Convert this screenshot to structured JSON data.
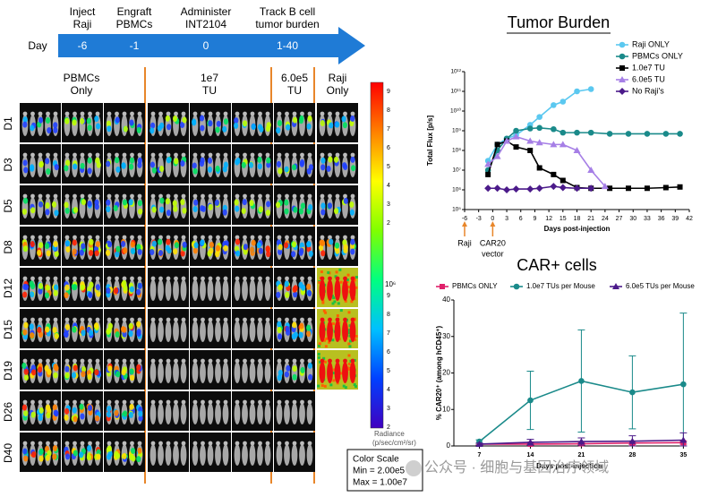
{
  "timeline": {
    "axis_label": "Day",
    "steps": [
      {
        "lines": [
          "Inject",
          "Raji"
        ],
        "day": "-6"
      },
      {
        "lines": [
          "Engraft",
          "PBMCs"
        ],
        "day": "-1"
      },
      {
        "lines": [
          "Administer",
          "INT2104"
        ],
        "day": "0"
      },
      {
        "lines": [
          "Track B cell",
          "tumor burden"
        ],
        "day": "1-40"
      }
    ]
  },
  "imaging": {
    "groups": [
      {
        "lines": [
          "PBMCs",
          "Only"
        ]
      },
      {
        "lines": [
          "1e7",
          "TU"
        ]
      },
      {
        "lines": [
          "6.0e5",
          "TU"
        ]
      },
      {
        "lines": [
          "Raji",
          "Only"
        ]
      }
    ],
    "rows": [
      "D1",
      "D3",
      "D5",
      "D8",
      "D12",
      "D15",
      "D19",
      "D26",
      "D40"
    ],
    "colorbar": {
      "upper": [
        "9",
        "8",
        "7",
        "6",
        "5",
        "4",
        "3",
        "2"
      ],
      "exponent": "10⁶",
      "lower": [
        "9",
        "8",
        "7",
        "6",
        "5",
        "4",
        "3",
        "2"
      ],
      "title": "Radiance",
      "unit": "(p/sec/cm²/sr)"
    },
    "color_scale": {
      "title": "Color Scale",
      "min": "Min = 2.00e5",
      "max": "Max = 1.00e7"
    }
  },
  "watermark": "公众号 · 细胞与基因治疗领域",
  "chart_data": [
    {
      "type": "line",
      "title": "Tumor Burden",
      "xlabel": "Days post-injection",
      "ylabel": "Total Flux [p/s]",
      "log_y": true,
      "xlim": [
        -6,
        42
      ],
      "xticks": [
        -6,
        -3,
        0,
        3,
        6,
        9,
        12,
        15,
        18,
        21,
        24,
        27,
        30,
        33,
        36,
        39,
        42
      ],
      "ylim": [
        100000,
        1000000000000
      ],
      "yticks": [
        {
          "value": 100000,
          "label": "10⁵"
        },
        {
          "value": 1000000,
          "label": "10⁶"
        },
        {
          "value": 10000000,
          "label": "10⁷"
        },
        {
          "value": 100000000,
          "label": "10⁸"
        },
        {
          "value": 1000000000,
          "label": "10⁹"
        },
        {
          "value": 10000000000,
          "label": "10¹⁰"
        },
        {
          "value": 100000000000,
          "label": "10¹¹"
        },
        {
          "value": 1000000000000,
          "label": "10¹²"
        }
      ],
      "legend": "top-right",
      "annotations": [
        {
          "x": -6,
          "lines": [
            "Raji"
          ]
        },
        {
          "x": 0,
          "lines": [
            "CAR20",
            "vector"
          ]
        }
      ],
      "series": [
        {
          "name": "Raji ONLY",
          "color": "#5bc8f0",
          "marker": "circle",
          "x": [
            -1,
            1,
            3,
            5,
            8,
            10,
            13,
            15,
            18,
            21
          ],
          "values": [
            30000000,
            200000000,
            400000000,
            600000000,
            2000000000,
            5000000000,
            20000000000,
            30000000000,
            100000000000,
            130000000000
          ]
        },
        {
          "name": "PBMCs ONLY",
          "color": "#1a8a8a",
          "marker": "circle",
          "x": [
            -1,
            1,
            3,
            5,
            8,
            10,
            13,
            15,
            18,
            21,
            25,
            29,
            33,
            37,
            40
          ],
          "values": [
            10000000,
            100000000,
            400000000,
            1000000000,
            1300000000,
            1400000000,
            1200000000,
            800000000,
            800000000,
            800000000,
            700000000,
            700000000,
            700000000,
            700000000,
            700000000
          ]
        },
        {
          "name": "1.0e7 TU",
          "color": "#000000",
          "marker": "square",
          "x": [
            -1,
            1,
            3,
            5,
            8,
            10,
            13,
            15,
            18,
            21,
            25,
            29,
            33,
            37,
            40
          ],
          "values": [
            6000000,
            200000000,
            300000000,
            150000000,
            100000000,
            13000000,
            6000000,
            3000000,
            1300000,
            1200000,
            1200000,
            1200000,
            1200000,
            1300000,
            1400000
          ]
        },
        {
          "name": "6.0e5 TU",
          "color": "#a67fe6",
          "marker": "triangle",
          "x": [
            -1,
            1,
            3,
            5,
            8,
            10,
            13,
            15,
            18,
            21,
            24
          ],
          "values": [
            20000000,
            50000000,
            300000000,
            500000000,
            300000000,
            250000000,
            200000000,
            200000000,
            100000000,
            10000000,
            1500000
          ]
        },
        {
          "name": "No Raji's",
          "color": "#4b1a8a",
          "marker": "diamond",
          "x": [
            -1,
            1,
            3,
            5,
            8,
            10,
            13,
            15,
            18,
            21
          ],
          "values": [
            1200000,
            1200000,
            1000000,
            1100000,
            1100000,
            1200000,
            1500000,
            1300000,
            1200000,
            1200000
          ]
        }
      ]
    },
    {
      "type": "line",
      "title": "CAR+ cells",
      "xlabel": "Days post-injection",
      "ylabel": "% CAR20⁺ (among hCD45⁺)",
      "xlim": [
        3.5,
        35.2
      ],
      "xticks": [
        7,
        14,
        21,
        28,
        35
      ],
      "ylim": [
        0,
        40
      ],
      "yticks": [
        0,
        10,
        20,
        30,
        40
      ],
      "legend": "top",
      "series": [
        {
          "name": "PBMCs ONLY",
          "color": "#e0206a",
          "marker": "square",
          "x": [
            7,
            14,
            21,
            28,
            35
          ],
          "values": [
            0.5,
            0.5,
            0.6,
            0.8,
            0.9
          ],
          "errors": [
            0.2,
            0.3,
            0.3,
            0.4,
            0.4
          ]
        },
        {
          "name": "1.0e7 TUs per Mouse",
          "color": "#1a8a8a",
          "marker": "circle",
          "x": [
            7,
            14,
            21,
            28,
            35
          ],
          "values": [
            1.2,
            12.5,
            17.8,
            14.7,
            16.9
          ],
          "errors": [
            0.5,
            8,
            14,
            10,
            19.5
          ]
        },
        {
          "name": "6.0e5 TUs per Mouse",
          "color": "#4b1a8a",
          "marker": "triangle",
          "x": [
            7,
            14,
            21,
            28,
            35
          ],
          "values": [
            0.5,
            1,
            1.2,
            1.3,
            1.6
          ],
          "errors": [
            0.3,
            0.8,
            1,
            1.5,
            2
          ]
        }
      ]
    }
  ]
}
